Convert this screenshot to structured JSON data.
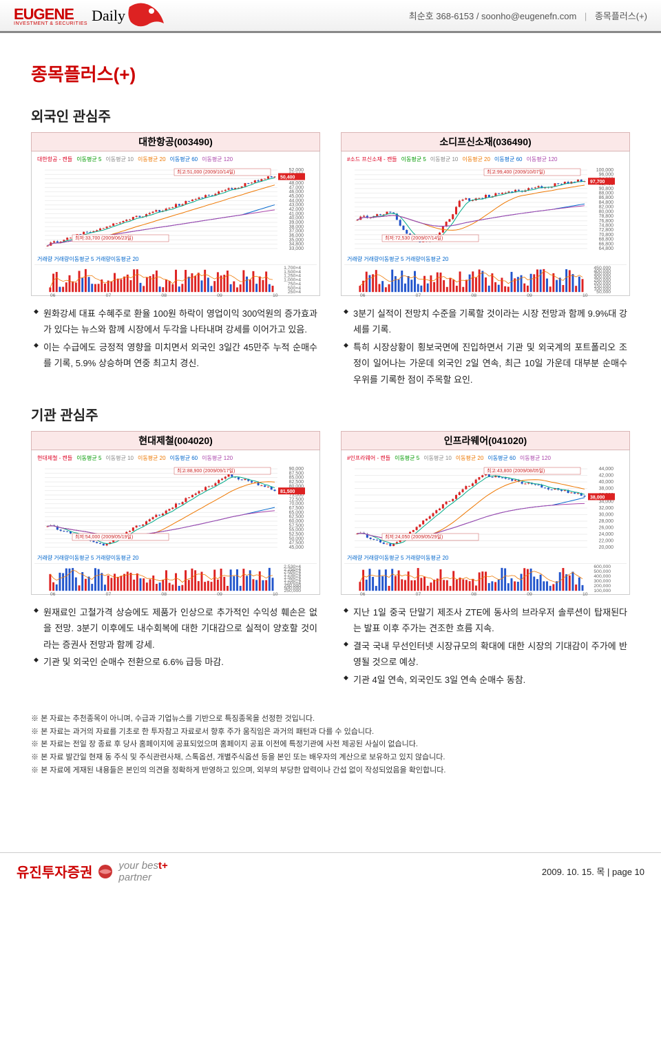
{
  "header": {
    "logo_main": "EUGENE",
    "logo_sub": "INVESTMENT & SECURITIES",
    "logo_daily": "Daily",
    "contact_name": "최순호",
    "contact_phone": "368-6153",
    "contact_email": "soonho@eugenefn.com",
    "section_name": "종목플러스(+)"
  },
  "title": "종목플러스(+)",
  "sections": [
    {
      "name": "foreign",
      "heading": "외국인 관심주",
      "cards": [
        {
          "id": "c003490",
          "title": "대한항공(003490)",
          "legend_prefix": "대한항공 - 캔들",
          "legend_ma": [
            "이동평균 5",
            "이동평균 10",
            "이동평균 20",
            "이동평균 60",
            "이동평균 120"
          ],
          "high_anno": "최고:51,000 (2009/10/14일)",
          "low_anno": "최저:33,700 (2009/06/23일)",
          "last_price": "50,400",
          "y_ticks": [
            "52,000",
            "50,000",
            "49,000",
            "48,000",
            "47,000",
            "46,000",
            "45,000",
            "44,000",
            "43,000",
            "42,000",
            "41,000",
            "40,000",
            "39,000",
            "38,000",
            "37,000",
            "36,000",
            "35,000",
            "34,800",
            "33,000"
          ],
          "vol_legend": "거래량 거래량이동평균 5  거래량이동평균 20",
          "vol_right": [
            "1,700×4",
            "1,500×4",
            "1,250×4",
            "1,000×4",
            "750×4",
            "500×4",
            "250×4"
          ],
          "x_ticks": [
            "06",
            "07",
            "08",
            "09",
            "10"
          ],
          "bullets": [
            "원화강세 대표 수혜주로 환율 100원 하락이 영업이익 300억원의 증가효과가 있다는 뉴스와 함께 시장에서 두각을 나타내며 강세를 이어가고 있음.",
            "이는 수급에도 긍정적 영향을 미치면서 외국인 3일간 45만주 누적 순매수를 기록, 5.9% 상승하며 연중 최고치 경신."
          ],
          "series": {
            "trend": "up_steady",
            "start": 34000,
            "end": 50400,
            "min": 33700,
            "max": 51000
          }
        },
        {
          "id": "c036490",
          "title": "소디프신소재(036490)",
          "legend_prefix": "#소드 프신소재 - 캔들",
          "legend_ma": [
            "이동평균 5",
            "이동평균 10",
            "이동평균 20",
            "이동평균 60",
            "이동평균 120"
          ],
          "high_anno": "최고:99,400 (2009/10/07일)",
          "low_anno": "최저:72,530 (2009/07/14일)",
          "last_price": "97,700",
          "y_ticks": [
            "100,000",
            "96,000",
            "94,000",
            "92,400",
            "90,800",
            "88,000",
            "86,800",
            "84,800",
            "82,000",
            "80,000",
            "78,800",
            "76,800",
            "74,800",
            "72,800",
            "70,800",
            "68,800",
            "66,800",
            "64,800"
          ],
          "vol_legend": "거래량 거래량이동평균 5  거래량이동평균 20",
          "vol_right": [
            "450,000",
            "400,000",
            "350,000",
            "300,000",
            "250,000",
            "200,000",
            "150,000",
            "100,000",
            "50,000"
          ],
          "x_ticks": [
            "06",
            "07",
            "08",
            "09",
            "10"
          ],
          "bullets": [
            "3분기 실적이 전망치 수준을 기록할 것이라는 시장 전망과 함께 9.9%대 강세를 기록.",
            "특히 시장상황이 횡보국면에 진입하면서 기관 및 외국계의 포트폴리오 조정이 일어나는 가운데 외국인 2일 연속, 최근 10일 가운데 대부분 순매수 우위를 기록한 점이 주목할 요인."
          ],
          "series": {
            "trend": "dip_then_up",
            "start": 86000,
            "end": 97700,
            "min": 72530,
            "max": 99400
          }
        }
      ]
    },
    {
      "name": "inst",
      "heading": "기관 관심주",
      "cards": [
        {
          "id": "c004020",
          "title": "현대제철(004020)",
          "legend_prefix": "현대제철 - 캔들",
          "legend_ma": [
            "이동평균 5",
            "이동평균 10",
            "이동평균 20",
            "이동평균 60",
            "이동평균 120"
          ],
          "high_anno": "최고:88,900 (2009/09/17일)",
          "low_anno": "최저:54,000 (2009/05/19일)",
          "last_price": "81,500",
          "y_ticks": [
            "90,000",
            "87,500",
            "85,000",
            "82,500",
            "80,000",
            "77,500",
            "75,000",
            "72,500",
            "70,000",
            "67,500",
            "65,000",
            "62,500",
            "60,000",
            "57,500",
            "55,000",
            "52,500",
            "50,000",
            "47,500",
            "45,000"
          ],
          "vol_legend": "거래량 거래량이동평균 5  거래량이동평균 20",
          "vol_right": [
            "2,530×4",
            "2,250×4",
            "2,000×4",
            "1,750×4",
            "1,500×4",
            "1,250×4",
            "1,000×4",
            "750,000",
            "500,000",
            "250,000"
          ],
          "x_ticks": [
            "06",
            "07",
            "08",
            "09",
            "10"
          ],
          "bullets": [
            "원재료인 고철가격 상승에도 제품가 인상으로 추가적인 수익성 훼손은 없을 전망. 3분기 이후에도 내수회복에 대한 기대감으로 실적이 양호할 것이라는 증권사 전망과 함께 강세.",
            "기관 및 외국인 순매수 전환으로 6.6% 급등 마감."
          ],
          "series": {
            "trend": "v_recover",
            "start": 64000,
            "end": 81500,
            "min": 54000,
            "max": 88900
          }
        },
        {
          "id": "c041020",
          "title": "인프라웨어(041020)",
          "legend_prefix": "#인프라웨어 - 캔들",
          "legend_ma": [
            "이동평균 5",
            "이동평균 10",
            "이동평균 20",
            "이동평균 60",
            "이동평균 120"
          ],
          "high_anno": "최고:43,800 (2009/08/05일)",
          "low_anno": "최저:24,050 (2009/05/29일)",
          "last_price": "38,000",
          "y_ticks": [
            "44,000",
            "42,000",
            "40,000",
            "38,000",
            "36,000",
            "34,000",
            "32,000",
            "30,000",
            "28,000",
            "26,000",
            "24,000",
            "22,000",
            "20,000"
          ],
          "vol_legend": "거래량 거래량이동평균 5  거래량이동평균 20",
          "vol_right": [
            "600,000",
            "500,000",
            "400,000",
            "300,000",
            "200,000",
            "100,000"
          ],
          "x_ticks": [
            "06",
            "07",
            "08",
            "09",
            "10"
          ],
          "bullets": [
            "지난 1일 중국 단말기 제조사 ZTE에 동사의 브라우저 솔루션이 탑재된다는 발표 이후 주가는 견조한 흐름 지속.",
            "결국 국내 무선인터넷 시장규모의 확대에 대한 시장의 기대감이 주가에 반영될 것으로 예상.",
            "기관 4일 연속, 외국인도 3일 연속 순매수 동참."
          ],
          "series": {
            "trend": "hump",
            "start": 28000,
            "end": 38000,
            "min": 24050,
            "max": 43800
          }
        }
      ]
    }
  ],
  "disclaimer": [
    "본 자료는 추천종목이 아니며, 수급과 기업뉴스를 기반으로 특징종목을 선정한 것입니다.",
    "본 자료는 과거의 자료를 기초로 한 투자참고 자료로서 향후 주가 움직임은 과거의 패턴과 다를 수 있습니다.",
    "본 자료는 전일 장 종료 후 당사 홈페이지에 공표되었으며 홈페이지 공표 이전에 특정기관에 사전 제공된 사실이 없습니다.",
    "본 자료 발간일 현재 동 주식 및 주식관련사채, 스톡옵션, 개별주식옵션 등을 본인 또는 배우자의 계산으로 보유하고 있지 않습니다.",
    "본 자료에 게재된 내용들은 본인의 의견을 정확하게 반영하고 있으며, 외부의 부당한 압력이나 간섭 없이 작성되었음을 확인합니다."
  ],
  "footer": {
    "logo_kr": "유진투자증권",
    "tag_a": "your bes",
    "tag_b": "partner",
    "date": "2009. 10. 15. 목",
    "page": "page 10"
  },
  "chart_colors": {
    "ma5": "#0a8",
    "ma10": "#888",
    "ma20": "#e70",
    "ma60": "#06c",
    "ma120": "#a4a",
    "up": "#d22",
    "down": "#25c",
    "grid": "#eee"
  }
}
